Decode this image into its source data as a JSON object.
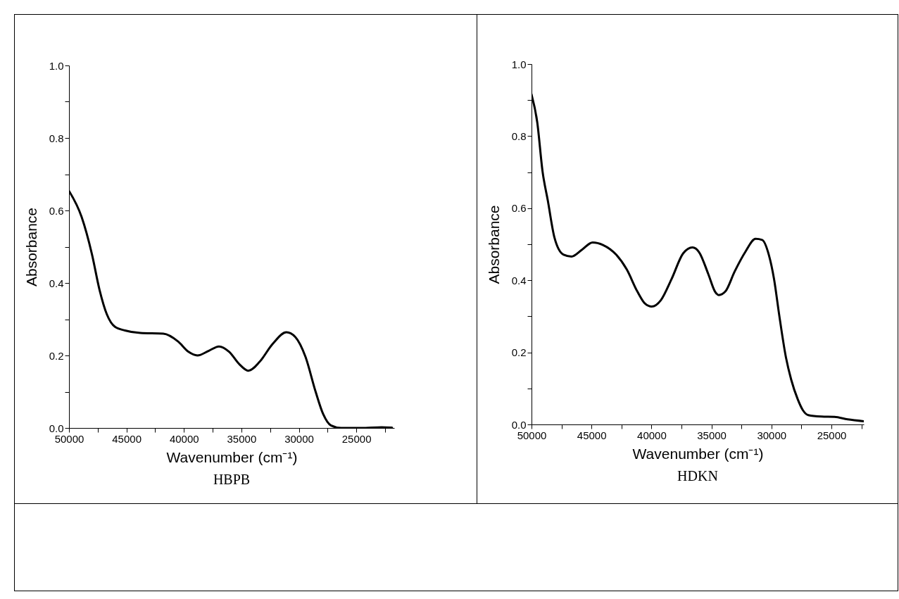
{
  "chart_data": [
    {
      "type": "line",
      "title": "HBPB",
      "xlabel": "Wavenumber (cm⁻¹)",
      "ylabel": "Absorbance",
      "color": "#000000",
      "marker": "none",
      "line_style": "solid",
      "x": [
        50000,
        48900,
        48000,
        47350,
        46700,
        46000,
        45130,
        43800,
        41800,
        40490,
        39600,
        38830,
        37830,
        36950,
        36060,
        35180,
        34400,
        33400,
        32300,
        31080,
        30310,
        29420,
        28540,
        27880,
        27210,
        26330,
        24560,
        22790,
        21900
      ],
      "values": [
        0.654,
        0.582,
        0.479,
        0.382,
        0.313,
        0.279,
        0.269,
        0.262,
        0.26,
        0.238,
        0.21,
        0.2,
        0.213,
        0.225,
        0.21,
        0.176,
        0.158,
        0.183,
        0.231,
        0.264,
        0.251,
        0.196,
        0.1,
        0.038,
        0.007,
        0,
        0,
        0.002,
        0.001
      ],
      "xlim": [
        50000,
        21700
      ],
      "ylim": [
        0,
        1
      ],
      "xticks": [
        50000,
        {
          "value": 47500,
          "label": null
        },
        45000,
        {
          "value": 42500,
          "label": null
        },
        40000,
        {
          "value": 37500,
          "label": null
        },
        35000,
        {
          "value": 32500,
          "label": null
        },
        30000,
        {
          "value": 27500,
          "label": null
        },
        25000,
        {
          "value": 22500,
          "label": null
        }
      ],
      "yticks": [
        {
          "value": 0,
          "label": "0.0"
        },
        {
          "value": 0.1,
          "label": null
        },
        0.2,
        {
          "value": 0.3,
          "label": null
        },
        0.4,
        {
          "value": 0.5,
          "label": null
        },
        0.6,
        {
          "value": 0.7,
          "label": null
        },
        0.8,
        {
          "value": 0.9,
          "label": null
        },
        {
          "value": 1,
          "label": "1.0"
        }
      ]
    },
    {
      "type": "line",
      "title": "HDKN",
      "xlabel": "Wavenumber (cm⁻¹)",
      "ylabel": "Absorbance",
      "color": "#000000",
      "marker": "none",
      "line_style": "solid",
      "x": [
        50000,
        49520,
        49080,
        48640,
        48090,
        47320,
        46670,
        45790,
        44910,
        44040,
        42940,
        42060,
        41180,
        40530,
        39980,
        39210,
        38330,
        37350,
        36580,
        36030,
        35260,
        34710,
        34390,
        33840,
        33070,
        32190,
        31320,
        30770,
        30220,
        29780,
        29340,
        28790,
        28350,
        27810,
        27370,
        26930,
        25830,
        24740,
        23640,
        22320
      ],
      "values": [
        0.916,
        0.838,
        0.702,
        0.621,
        0.519,
        0.471,
        0.466,
        0.485,
        0.505,
        0.498,
        0.471,
        0.43,
        0.369,
        0.335,
        0.327,
        0.345,
        0.403,
        0.475,
        0.491,
        0.478,
        0.417,
        0.369,
        0.359,
        0.369,
        0.424,
        0.478,
        0.515,
        0.512,
        0.471,
        0.403,
        0.301,
        0.186,
        0.124,
        0.07,
        0.039,
        0.026,
        0.022,
        0.021,
        0.014,
        0.009
      ],
      "xlim": [
        50000,
        22300
      ],
      "ylim": [
        0,
        1
      ],
      "xticks": [
        50000,
        {
          "value": 47500,
          "label": null
        },
        45000,
        {
          "value": 42500,
          "label": null
        },
        40000,
        {
          "value": 37500,
          "label": null
        },
        35000,
        {
          "value": 32500,
          "label": null
        },
        30000,
        {
          "value": 27500,
          "label": null
        },
        25000,
        {
          "value": 22500,
          "label": null
        }
      ],
      "yticks": [
        {
          "value": 0,
          "label": "0.0"
        },
        {
          "value": 0.1,
          "label": null
        },
        0.2,
        {
          "value": 0.3,
          "label": null
        },
        0.4,
        {
          "value": 0.5,
          "label": null
        },
        0.6,
        {
          "value": 0.7,
          "label": null
        },
        0.8,
        {
          "value": 0.9,
          "label": null
        },
        {
          "value": 1,
          "label": "1.0"
        }
      ]
    }
  ]
}
